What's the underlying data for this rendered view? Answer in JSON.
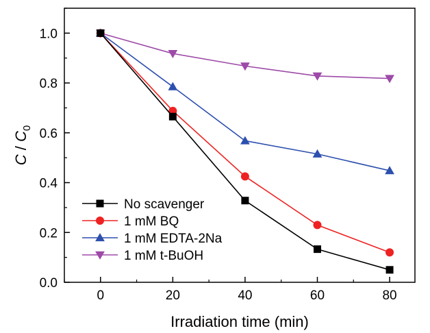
{
  "chart_data": {
    "type": "line",
    "title": "",
    "xlabel": "Irradiation time (min)",
    "ylabel_main": "C",
    "ylabel_sep": " / ",
    "ylabel_den": "C",
    "ylabel_sub": "0",
    "x": [
      0,
      20,
      40,
      60,
      80
    ],
    "xlim": [
      -10,
      87
    ],
    "ylim": [
      0.0,
      1.1
    ],
    "xticks": [
      0,
      20,
      40,
      60,
      80
    ],
    "xtick_labels": [
      "0",
      "20",
      "40",
      "60",
      "80"
    ],
    "yticks": [
      0.0,
      0.2,
      0.4,
      0.6,
      0.8,
      1.0
    ],
    "ytick_labels": [
      "0.0",
      "0.2",
      "0.4",
      "0.6",
      "0.8",
      "1.0"
    ],
    "grid": false,
    "legend_position": "bottom-left",
    "series": [
      {
        "name": "No scavenger",
        "values": [
          1.0,
          0.665,
          0.328,
          0.133,
          0.05
        ],
        "color": "#000000",
        "marker": "square"
      },
      {
        "name": "1 mM BQ",
        "values": [
          1.0,
          0.688,
          0.425,
          0.23,
          0.12
        ],
        "color": "#ee2222",
        "marker": "circle"
      },
      {
        "name": "1 mM EDTA-2Na",
        "values": [
          1.0,
          0.785,
          0.568,
          0.515,
          0.448
        ],
        "color": "#2d4fae",
        "marker": "triangle-up"
      },
      {
        "name": "1 mM t-BuOH",
        "values": [
          1.0,
          0.918,
          0.868,
          0.828,
          0.818
        ],
        "color": "#9d4aa8",
        "marker": "triangle-down"
      }
    ]
  }
}
